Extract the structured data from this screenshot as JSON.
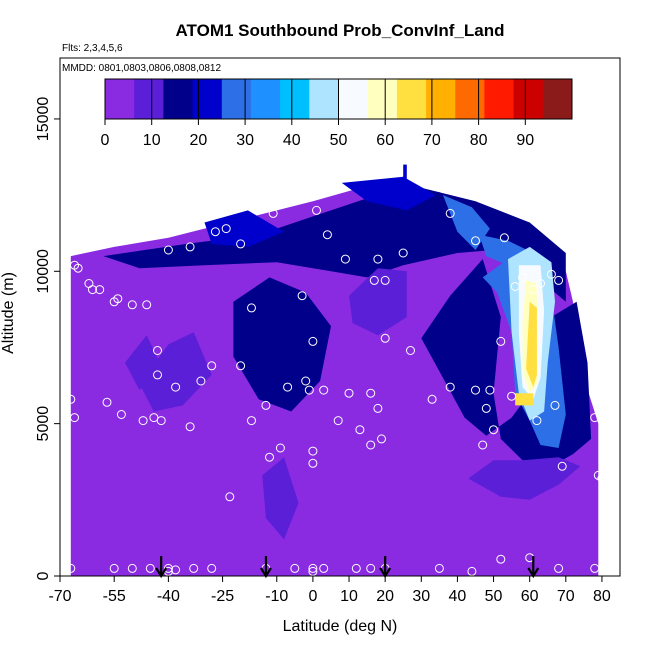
{
  "chart_data": {
    "type": "heatmap",
    "title": "ATOM1 Southbound Prob_ConvInf_Land",
    "notes": [
      "Flts: 2,3,4,5,6",
      "MMDD: 0801,0803,0806,0808,0812"
    ],
    "xlabel": "Latitude (deg N)",
    "ylabel": "Altitude (m)",
    "xlim": [
      -70,
      85
    ],
    "ylim": [
      0,
      17000
    ],
    "x_ticks": [
      -70,
      -55,
      -40,
      -25,
      -10,
      0,
      10,
      20,
      30,
      40,
      50,
      60,
      70,
      80
    ],
    "y_ticks": [
      0,
      5000,
      10000,
      15000
    ],
    "colorbar": {
      "range": [
        0,
        100
      ],
      "ticks": [
        0,
        10,
        20,
        30,
        40,
        50,
        60,
        70,
        80,
        90
      ],
      "colors": [
        "#8a2be2",
        "#5a1fd6",
        "#00008b",
        "#0000cd",
        "#2d6fe6",
        "#1e90ff",
        "#00bfff",
        "#aee4ff",
        "#f7fbff",
        "#ffffc0",
        "#ffe040",
        "#ffb000",
        "#ff6a00",
        "#ff1a00",
        "#cd0000",
        "#8b1a1a"
      ]
    },
    "domain_outline": [
      [
        -67,
        0
      ],
      [
        79,
        0
      ],
      [
        79,
        5000
      ],
      [
        75,
        6500
      ],
      [
        72,
        9000
      ],
      [
        70,
        10000
      ],
      [
        63,
        10800
      ],
      [
        50,
        11800
      ],
      [
        35,
        12600
      ],
      [
        18,
        12900
      ],
      [
        0,
        12300
      ],
      [
        -20,
        11700
      ],
      [
        -40,
        11100
      ],
      [
        -55,
        10800
      ],
      [
        -67,
        10500
      ]
    ],
    "regions": [
      {
        "value": 15,
        "poly": [
          [
            -58,
            10500
          ],
          [
            -35,
            10900
          ],
          [
            -15,
            11200
          ],
          [
            0,
            11800
          ],
          [
            15,
            12400
          ],
          [
            28,
            12800
          ],
          [
            45,
            12300
          ],
          [
            60,
            11600
          ],
          [
            70,
            10600
          ],
          [
            70,
            9000
          ],
          [
            60,
            10000
          ],
          [
            50,
            10700
          ],
          [
            40,
            10600
          ],
          [
            25,
            10200
          ],
          [
            15,
            9800
          ],
          [
            5,
            10000
          ],
          [
            -10,
            10300
          ],
          [
            -30,
            10200
          ],
          [
            -48,
            10100
          ]
        ]
      },
      {
        "value": 15,
        "poly": [
          [
            30,
            7800
          ],
          [
            38,
            9200
          ],
          [
            47,
            10400
          ],
          [
            52,
            8500
          ],
          [
            50,
            6000
          ],
          [
            52,
            4500
          ],
          [
            58,
            3800
          ],
          [
            66,
            3600
          ],
          [
            72,
            4000
          ],
          [
            77,
            4500
          ],
          [
            76,
            7000
          ],
          [
            73,
            9000
          ],
          [
            66,
            8500
          ],
          [
            60,
            6000
          ],
          [
            55,
            5200
          ],
          [
            48,
            4600
          ],
          [
            42,
            5200
          ],
          [
            36,
            6500
          ]
        ]
      },
      {
        "value": 12,
        "poly": [
          [
            43,
            3200
          ],
          [
            52,
            2600
          ],
          [
            60,
            2500
          ],
          [
            68,
            3000
          ],
          [
            74,
            3600
          ],
          [
            68,
            3900
          ],
          [
            58,
            3800
          ],
          [
            50,
            3800
          ]
        ]
      },
      {
        "value": 13,
        "poly": [
          [
            -22,
            9000
          ],
          [
            -12,
            9800
          ],
          [
            -2,
            9300
          ],
          [
            5,
            8200
          ],
          [
            2,
            6400
          ],
          [
            -6,
            5400
          ],
          [
            -15,
            5800
          ],
          [
            -22,
            7200
          ]
        ]
      },
      {
        "value": 12,
        "poly": [
          [
            -48,
            6300
          ],
          [
            -40,
            7600
          ],
          [
            -33,
            8000
          ],
          [
            -28,
            6600
          ],
          [
            -36,
            5600
          ],
          [
            -44,
            5400
          ]
        ]
      },
      {
        "value": 12,
        "poly": [
          [
            10,
            9200
          ],
          [
            18,
            10100
          ],
          [
            26,
            10000
          ],
          [
            26,
            8500
          ],
          [
            18,
            7900
          ],
          [
            11,
            8300
          ]
        ]
      },
      {
        "value": 12,
        "poly": [
          [
            -14,
            3300
          ],
          [
            -8,
            3900
          ],
          [
            -4,
            2400
          ],
          [
            -8,
            1200
          ],
          [
            -13,
            1900
          ]
        ]
      },
      {
        "value": 12,
        "poly": [
          [
            -52,
            7000
          ],
          [
            -46,
            7900
          ],
          [
            -42,
            6900
          ],
          [
            -48,
            6100
          ]
        ]
      },
      {
        "value": 22,
        "poly": [
          [
            -30,
            11600
          ],
          [
            -18,
            12000
          ],
          [
            -8,
            11300
          ],
          [
            -18,
            10800
          ],
          [
            -28,
            10900
          ]
        ]
      },
      {
        "value": 24,
        "poly": [
          [
            8,
            12900
          ],
          [
            25,
            13100
          ],
          [
            34,
            12500
          ],
          [
            26,
            12000
          ],
          [
            15,
            12300
          ]
        ]
      },
      {
        "value": 28,
        "poly": [
          [
            36,
            12500
          ],
          [
            44,
            12100
          ],
          [
            49,
            11400
          ],
          [
            45,
            10700
          ],
          [
            40,
            11300
          ]
        ]
      },
      {
        "value": 26,
        "poly": [
          [
            46,
            11200
          ],
          [
            54,
            11000
          ],
          [
            61,
            10600
          ],
          [
            62,
            9800
          ],
          [
            54,
            10200
          ],
          [
            48,
            10500
          ]
        ]
      },
      {
        "value": 30,
        "poly": [
          [
            47,
            9800
          ],
          [
            51,
            9300
          ],
          [
            55,
            8000
          ],
          [
            56,
            6000
          ],
          [
            60,
            5100
          ],
          [
            63,
            4300
          ],
          [
            68,
            4200
          ],
          [
            70,
            5300
          ],
          [
            68,
            7500
          ],
          [
            66,
            9200
          ],
          [
            62,
            10300
          ],
          [
            54,
            10400
          ]
        ]
      },
      {
        "value": 45,
        "poly": [
          [
            54,
            10400
          ],
          [
            60,
            10800
          ],
          [
            66,
            10300
          ],
          [
            67,
            9000
          ],
          [
            65,
            7000
          ],
          [
            64,
            5400
          ],
          [
            60,
            5100
          ],
          [
            57,
            6000
          ],
          [
            55,
            8000
          ]
        ]
      },
      {
        "value": 52,
        "poly": [
          [
            57,
            10200
          ],
          [
            63,
            10200
          ],
          [
            64,
            8700
          ],
          [
            63,
            6500
          ],
          [
            61,
            5800
          ],
          [
            58,
            6200
          ],
          [
            57,
            8000
          ]
        ]
      },
      {
        "value": 62,
        "poly": [
          [
            59,
            9700
          ],
          [
            62,
            9600
          ],
          [
            62,
            8200
          ],
          [
            62,
            6300
          ],
          [
            60,
            6000
          ],
          [
            58,
            6700
          ],
          [
            58,
            8300
          ]
        ]
      },
      {
        "value": 68,
        "poly": [
          [
            60,
            9000
          ],
          [
            62,
            8800
          ],
          [
            62,
            6600
          ],
          [
            61,
            6200
          ],
          [
            59,
            6800
          ]
        ]
      },
      {
        "value": 66,
        "poly": [
          [
            56,
            6000
          ],
          [
            61,
            6000
          ],
          [
            61,
            5600
          ],
          [
            56,
            5600
          ]
        ]
      },
      {
        "value": 22,
        "poly": [
          [
            25,
            13500
          ],
          [
            26,
            13500
          ],
          [
            26,
            13000
          ],
          [
            25,
            13000
          ]
        ]
      }
    ],
    "points": [
      [
        -66,
        10200
      ],
      [
        -65,
        10100
      ],
      [
        -62,
        9600
      ],
      [
        -61,
        9400
      ],
      [
        -59,
        9400
      ],
      [
        -55,
        9000
      ],
      [
        -54,
        9100
      ],
      [
        -50,
        8900
      ],
      [
        -46,
        8900
      ],
      [
        -44,
        11600
      ],
      [
        -40,
        10700
      ],
      [
        -34,
        10800
      ],
      [
        -27,
        11300
      ],
      [
        -24,
        11400
      ],
      [
        -20,
        10900
      ],
      [
        -17,
        8800
      ],
      [
        -11,
        11900
      ],
      [
        -3,
        9200
      ],
      [
        1,
        12000
      ],
      [
        4,
        11200
      ],
      [
        9,
        10400
      ],
      [
        18,
        10400
      ],
      [
        20,
        9700
      ],
      [
        17,
        9700
      ],
      [
        25,
        10600
      ],
      [
        38,
        11900
      ],
      [
        45,
        11000
      ],
      [
        53,
        11100
      ],
      [
        56,
        9500
      ],
      [
        58,
        9800
      ],
      [
        61,
        9400
      ],
      [
        63,
        9600
      ],
      [
        66,
        9900
      ],
      [
        68,
        9700
      ],
      [
        -67,
        5800
      ],
      [
        -66,
        5200
      ],
      [
        -57,
        5700
      ],
      [
        -53,
        5300
      ],
      [
        -47,
        5100
      ],
      [
        -44,
        5200
      ],
      [
        -42,
        5100
      ],
      [
        -43,
        7400
      ],
      [
        -43,
        6600
      ],
      [
        -38,
        6200
      ],
      [
        -34,
        4900
      ],
      [
        -31,
        6400
      ],
      [
        -28,
        6900
      ],
      [
        -20,
        6900
      ],
      [
        -17,
        5100
      ],
      [
        -13,
        5600
      ],
      [
        -7,
        6200
      ],
      [
        -2,
        6400
      ],
      [
        -1,
        6100
      ],
      [
        3,
        6100
      ],
      [
        0,
        7700
      ],
      [
        7,
        5100
      ],
      [
        10,
        6000
      ],
      [
        13,
        4800
      ],
      [
        16,
        6000
      ],
      [
        18,
        5500
      ],
      [
        16,
        4300
      ],
      [
        19,
        4500
      ],
      [
        20,
        7800
      ],
      [
        27,
        7400
      ],
      [
        33,
        5800
      ],
      [
        38,
        6200
      ],
      [
        45,
        6100
      ],
      [
        49,
        6100
      ],
      [
        50,
        4800
      ],
      [
        48,
        5500
      ],
      [
        52,
        7700
      ],
      [
        55,
        5900
      ],
      [
        62,
        5100
      ],
      [
        67,
        5600
      ],
      [
        69,
        3600
      ],
      [
        78,
        5200
      ],
      [
        79,
        3300
      ],
      [
        80,
        3200
      ],
      [
        82,
        10000
      ],
      [
        -67,
        250
      ],
      [
        -55,
        250
      ],
      [
        -50,
        250
      ],
      [
        -45,
        250
      ],
      [
        -40,
        250
      ],
      [
        -33,
        250
      ],
      [
        -28,
        250
      ],
      [
        -13,
        250
      ],
      [
        -5,
        250
      ],
      [
        0,
        250
      ],
      [
        0,
        150
      ],
      [
        3,
        250
      ],
      [
        12,
        250
      ],
      [
        16,
        250
      ],
      [
        20,
        250
      ],
      [
        -40,
        150
      ],
      [
        -38,
        200
      ],
      [
        35,
        250
      ],
      [
        44,
        150
      ],
      [
        -23,
        2600
      ],
      [
        -9,
        4200
      ],
      [
        -12,
        3900
      ],
      [
        0,
        3700
      ],
      [
        0,
        4100
      ],
      [
        47,
        4300
      ],
      [
        60,
        600
      ],
      [
        52,
        550
      ],
      [
        68,
        250
      ],
      [
        78,
        250
      ]
    ],
    "arrows_at_lat": [
      -42,
      -13,
      20,
      61
    ],
    "point_color": "#ffffff"
  }
}
